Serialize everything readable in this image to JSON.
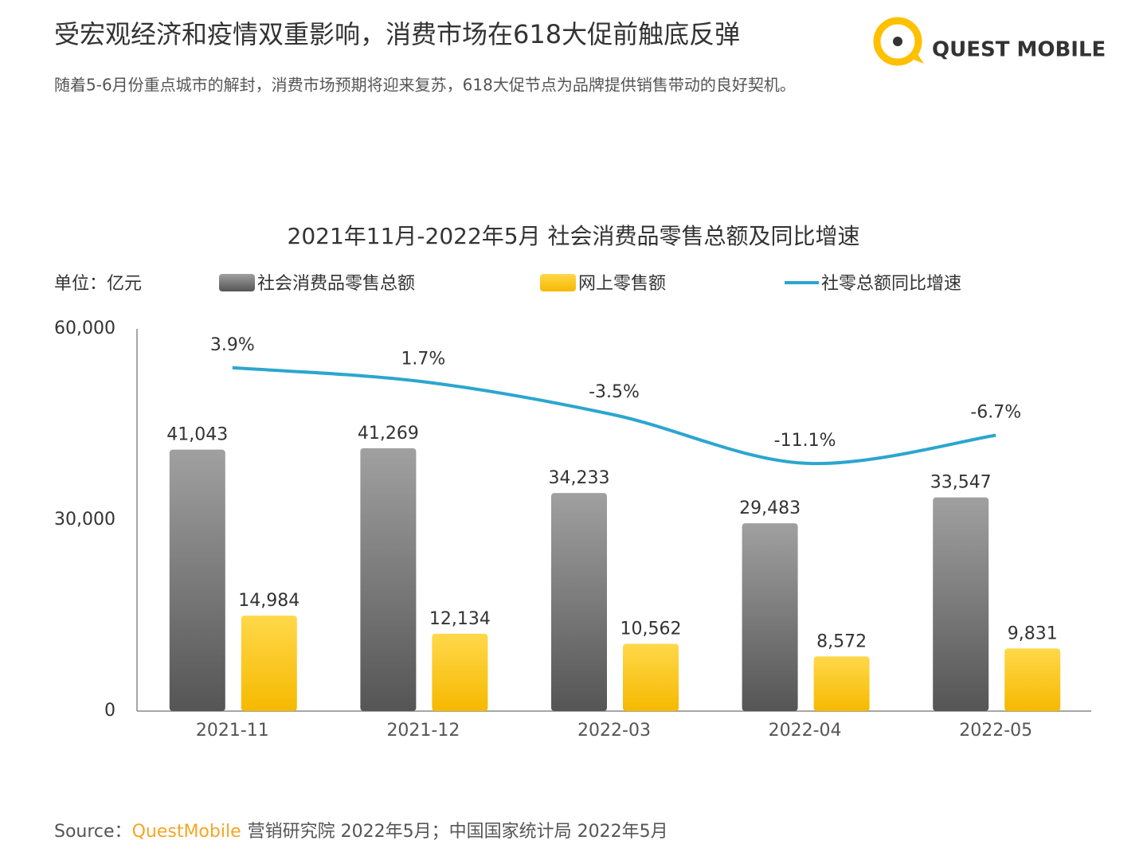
{
  "header": {
    "title": "受宏观经济和疫情双重影响，消费市场在618大促前触底反弹",
    "subtitle": "随着5-6月份重点城市的解封，消费市场预期将迎来复苏，618大促节点为品牌提供销售带动的良好契机。"
  },
  "logo": "QUEST MOBILE",
  "source": {
    "label": "Source：",
    "brand": "QuestMobile",
    "text": "营销研究院 2022年5月；中国国家统计局  2022年5月"
  },
  "chart_data": {
    "type": "bar",
    "title": "2021年11月-2022年5月 社会消费品零售总额及同比增速",
    "y_label": "单位：亿元",
    "categories": [
      "2021-11",
      "2021-12",
      "2022-03",
      "2022-04",
      "2022-05"
    ],
    "series": [
      {
        "name": "社会消费品零售总额",
        "color": "#808080",
        "values": [
          41043,
          41269,
          34233,
          29483,
          33547
        ],
        "value_labels": [
          "41,043",
          "41,269",
          "34,233",
          "29,483",
          "33,547"
        ]
      },
      {
        "name": "网上零售额",
        "color": "#ffc000",
        "values": [
          14984,
          12134,
          10562,
          8572,
          9831
        ],
        "value_labels": [
          "14,984",
          "12,134",
          "10,562",
          "8,572",
          "9,831"
        ]
      },
      {
        "name": "社零总额同比增速",
        "color": "#2ba6cf",
        "type": "line",
        "axis": "y2",
        "values": [
          3.9,
          1.7,
          -3.5,
          -11.1,
          -6.7
        ],
        "value_labels": [
          "3.9%",
          "1.7%",
          "-3.5%",
          "-11.1%",
          "-6.7%"
        ]
      }
    ],
    "ylim": [
      0,
      60000
    ],
    "yticks": [
      0,
      {
        "value": 30000,
        "label": "30,000"
      },
      {
        "value": 60000,
        "label": "60,000"
      }
    ],
    "y2lim": [
      -50,
      10
    ],
    "legend": "top"
  }
}
